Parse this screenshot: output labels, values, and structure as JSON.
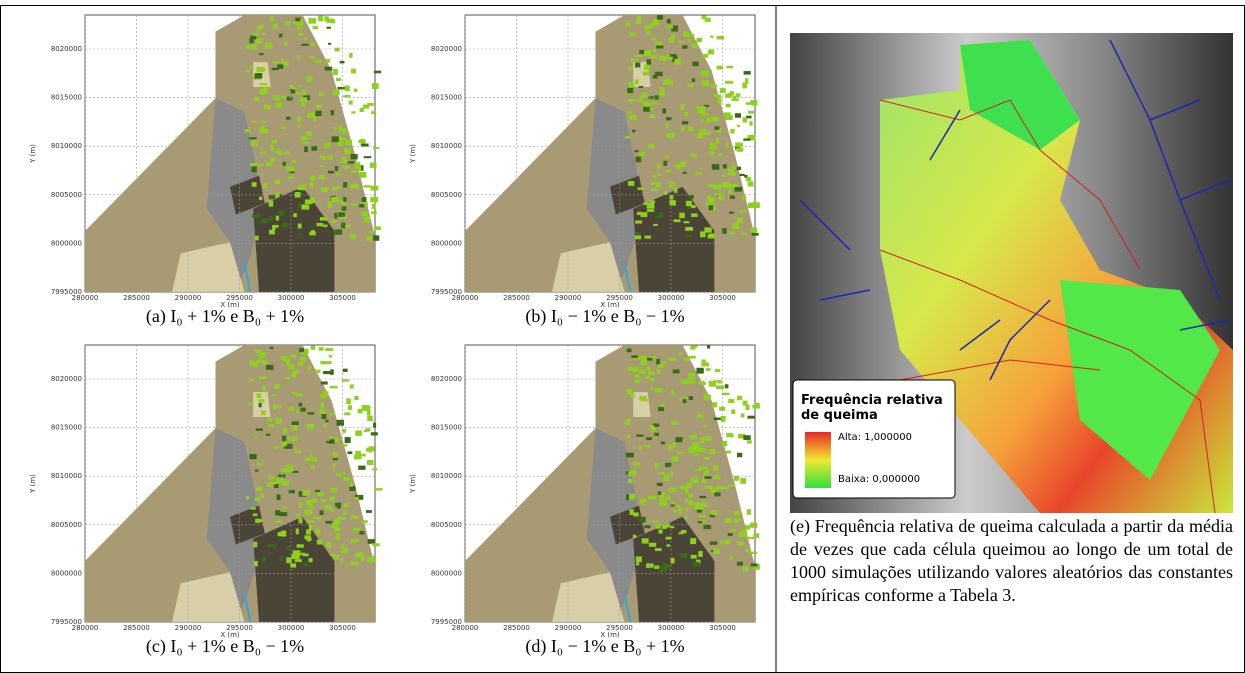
{
  "panels": [
    {
      "caption": "(a) I₀ + 1% e B₀ + 1%"
    },
    {
      "caption": "(b) I₀ − 1% e B₀ − 1%"
    },
    {
      "caption": "(c) I₀ + 1% e B₀ − 1%"
    },
    {
      "caption": "(d) I₀ − 1% e B₀ + 1%"
    }
  ],
  "map_axes": {
    "x_label": "X (m)",
    "y_label": "Y (m)",
    "yticks": [
      "8020000",
      "8015000",
      "8010000",
      "8005000",
      "8000000",
      "7995000"
    ],
    "xticks": [
      "280000",
      "285000",
      "290000",
      "295000",
      "300000",
      "305000"
    ]
  },
  "right_panel": {
    "legend_title": "Frequência relativa de queima",
    "legend_high": "Alta: 1,000000",
    "legend_low": "Baixa: 0,000000",
    "caption": "(e) Frequência relativa de queima calculada a partir da média de vezes que cada célula queimou ao longo de um total de 1000 simulações utilizando valores aleatórios das constantes empíricas conforme a Tabela 3."
  }
}
